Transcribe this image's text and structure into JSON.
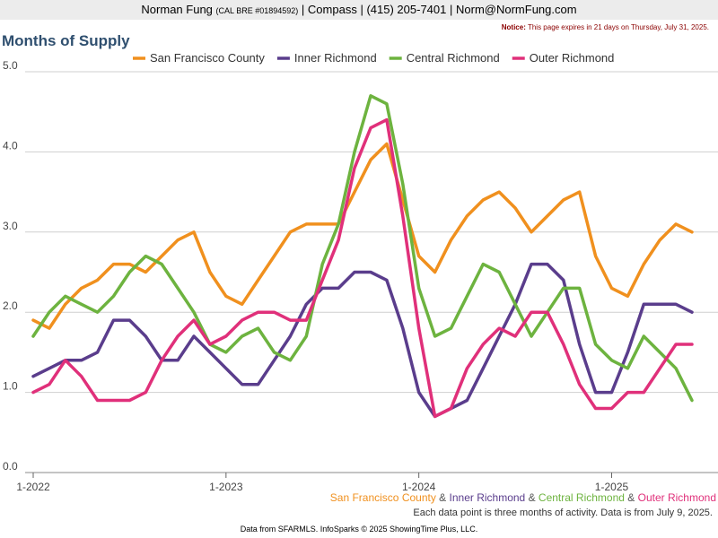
{
  "header": {
    "name": "Norman Fung",
    "license": "(CAL BRE #01894592)",
    "company": "Compass",
    "phone": "(415) 205-7401",
    "email": "Norm@NormFung.com",
    "sep": "|"
  },
  "notice": {
    "label": "Notice:",
    "text": "This page expires in 21 days on Thursday, July 31, 2025."
  },
  "footer": {
    "legend_join": "&",
    "note": "Each data point is three months of activity. Data is from July 9, 2025.",
    "credit": "Data from SFARMLS. InfoSparks © 2025 ShowingTime Plus, LLC."
  },
  "chart_data": {
    "type": "line",
    "title": "Months of Supply",
    "xlabel": "",
    "ylabel": "",
    "ylim": [
      0,
      5
    ],
    "yticks": [
      "0.0",
      "1.0",
      "2.0",
      "3.0",
      "4.0",
      "5.0"
    ],
    "x_tick_labels": [
      "1-2022",
      "1-2023",
      "1-2024",
      "1-2025"
    ],
    "x_tick_index": [
      0,
      12,
      24,
      36
    ],
    "grid": "horizontal",
    "legend_position": "top",
    "series": [
      {
        "name": "San Francisco County",
        "color": "#f0901e",
        "values": [
          1.9,
          1.8,
          2.1,
          2.3,
          2.4,
          2.6,
          2.6,
          2.5,
          2.7,
          2.9,
          3.0,
          2.5,
          2.2,
          2.1,
          2.4,
          2.7,
          3.0,
          3.1,
          3.1,
          3.1,
          3.5,
          3.9,
          4.1,
          3.4,
          2.7,
          2.5,
          2.9,
          3.2,
          3.4,
          3.5,
          3.3,
          3.0,
          3.2,
          3.4,
          3.5,
          2.7,
          2.3,
          2.2,
          2.6,
          2.9,
          3.1,
          3.0
        ]
      },
      {
        "name": "Inner Richmond",
        "color": "#5a3d8c",
        "values": [
          1.2,
          1.3,
          1.4,
          1.4,
          1.5,
          1.9,
          1.9,
          1.7,
          1.4,
          1.4,
          1.7,
          1.5,
          1.3,
          1.1,
          1.1,
          1.4,
          1.7,
          2.1,
          2.3,
          2.3,
          2.5,
          2.5,
          2.4,
          1.8,
          1.0,
          0.7,
          0.8,
          0.9,
          1.3,
          1.7,
          2.1,
          2.6,
          2.6,
          2.4,
          1.6,
          1.0,
          1.0,
          1.5,
          2.1,
          2.1,
          2.1,
          2.0
        ]
      },
      {
        "name": "Central Richmond",
        "color": "#6db33f",
        "values": [
          1.7,
          2.0,
          2.2,
          2.1,
          2.0,
          2.2,
          2.5,
          2.7,
          2.6,
          2.3,
          2.0,
          1.6,
          1.5,
          1.7,
          1.8,
          1.5,
          1.4,
          1.7,
          2.6,
          3.1,
          4.0,
          4.7,
          4.6,
          3.6,
          2.3,
          1.7,
          1.8,
          2.2,
          2.6,
          2.5,
          2.1,
          1.7,
          2.0,
          2.3,
          2.3,
          1.6,
          1.4,
          1.3,
          1.7,
          1.5,
          1.3,
          0.9
        ]
      },
      {
        "name": "Outer Richmond",
        "color": "#e0307a",
        "values": [
          1.0,
          1.1,
          1.4,
          1.2,
          0.9,
          0.9,
          0.9,
          1.0,
          1.4,
          1.7,
          1.9,
          1.6,
          1.7,
          1.9,
          2.0,
          2.0,
          1.9,
          1.9,
          2.4,
          2.9,
          3.8,
          4.3,
          4.4,
          3.2,
          1.8,
          0.7,
          0.8,
          1.3,
          1.6,
          1.8,
          1.7,
          2.0,
          2.0,
          1.6,
          1.1,
          0.8,
          0.8,
          1.0,
          1.0,
          1.3,
          1.6,
          1.6
        ]
      }
    ]
  }
}
